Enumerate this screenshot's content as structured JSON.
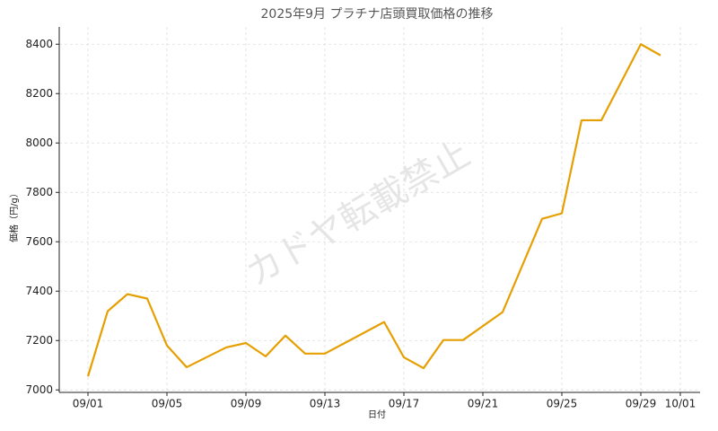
{
  "chart_data": {
    "type": "line",
    "title": "2025年9月 プラチナ店頭買取価格の推移",
    "x_label": "日付",
    "y_label": "価格（円/g）",
    "watermark": "カドヤ転載禁止",
    "x": [
      "09/01",
      "09/02",
      "09/03",
      "09/04",
      "09/05",
      "09/06",
      "09/08",
      "09/09",
      "09/10",
      "09/11",
      "09/12",
      "09/13",
      "09/16",
      "09/17",
      "09/18",
      "09/19",
      "09/20",
      "09/22",
      "09/24",
      "09/25",
      "09/26",
      "09/27",
      "09/29",
      "09/30"
    ],
    "series": [
      {
        "name": "価格",
        "color": "#e69f00",
        "values": [
          7055,
          7319,
          7388,
          7370,
          7180,
          7092,
          7172,
          7190,
          7136,
          7220,
          7147,
          7147,
          7275,
          7132,
          7088,
          7202,
          7202,
          7315,
          7693,
          7715,
          8092,
          8092,
          8400,
          8355
        ]
      }
    ],
    "xlim": [
      "08/30",
      "10/02"
    ],
    "xticks": [
      "09/01",
      "09/05",
      "09/09",
      "09/13",
      "09/17",
      "09/21",
      "09/25",
      "09/29",
      "10/01"
    ],
    "ylim": [
      6990,
      8470
    ],
    "yticks": [
      7000,
      7200,
      7400,
      7600,
      7800,
      8000,
      8200,
      8400
    ],
    "grid": true,
    "legend": false
  }
}
